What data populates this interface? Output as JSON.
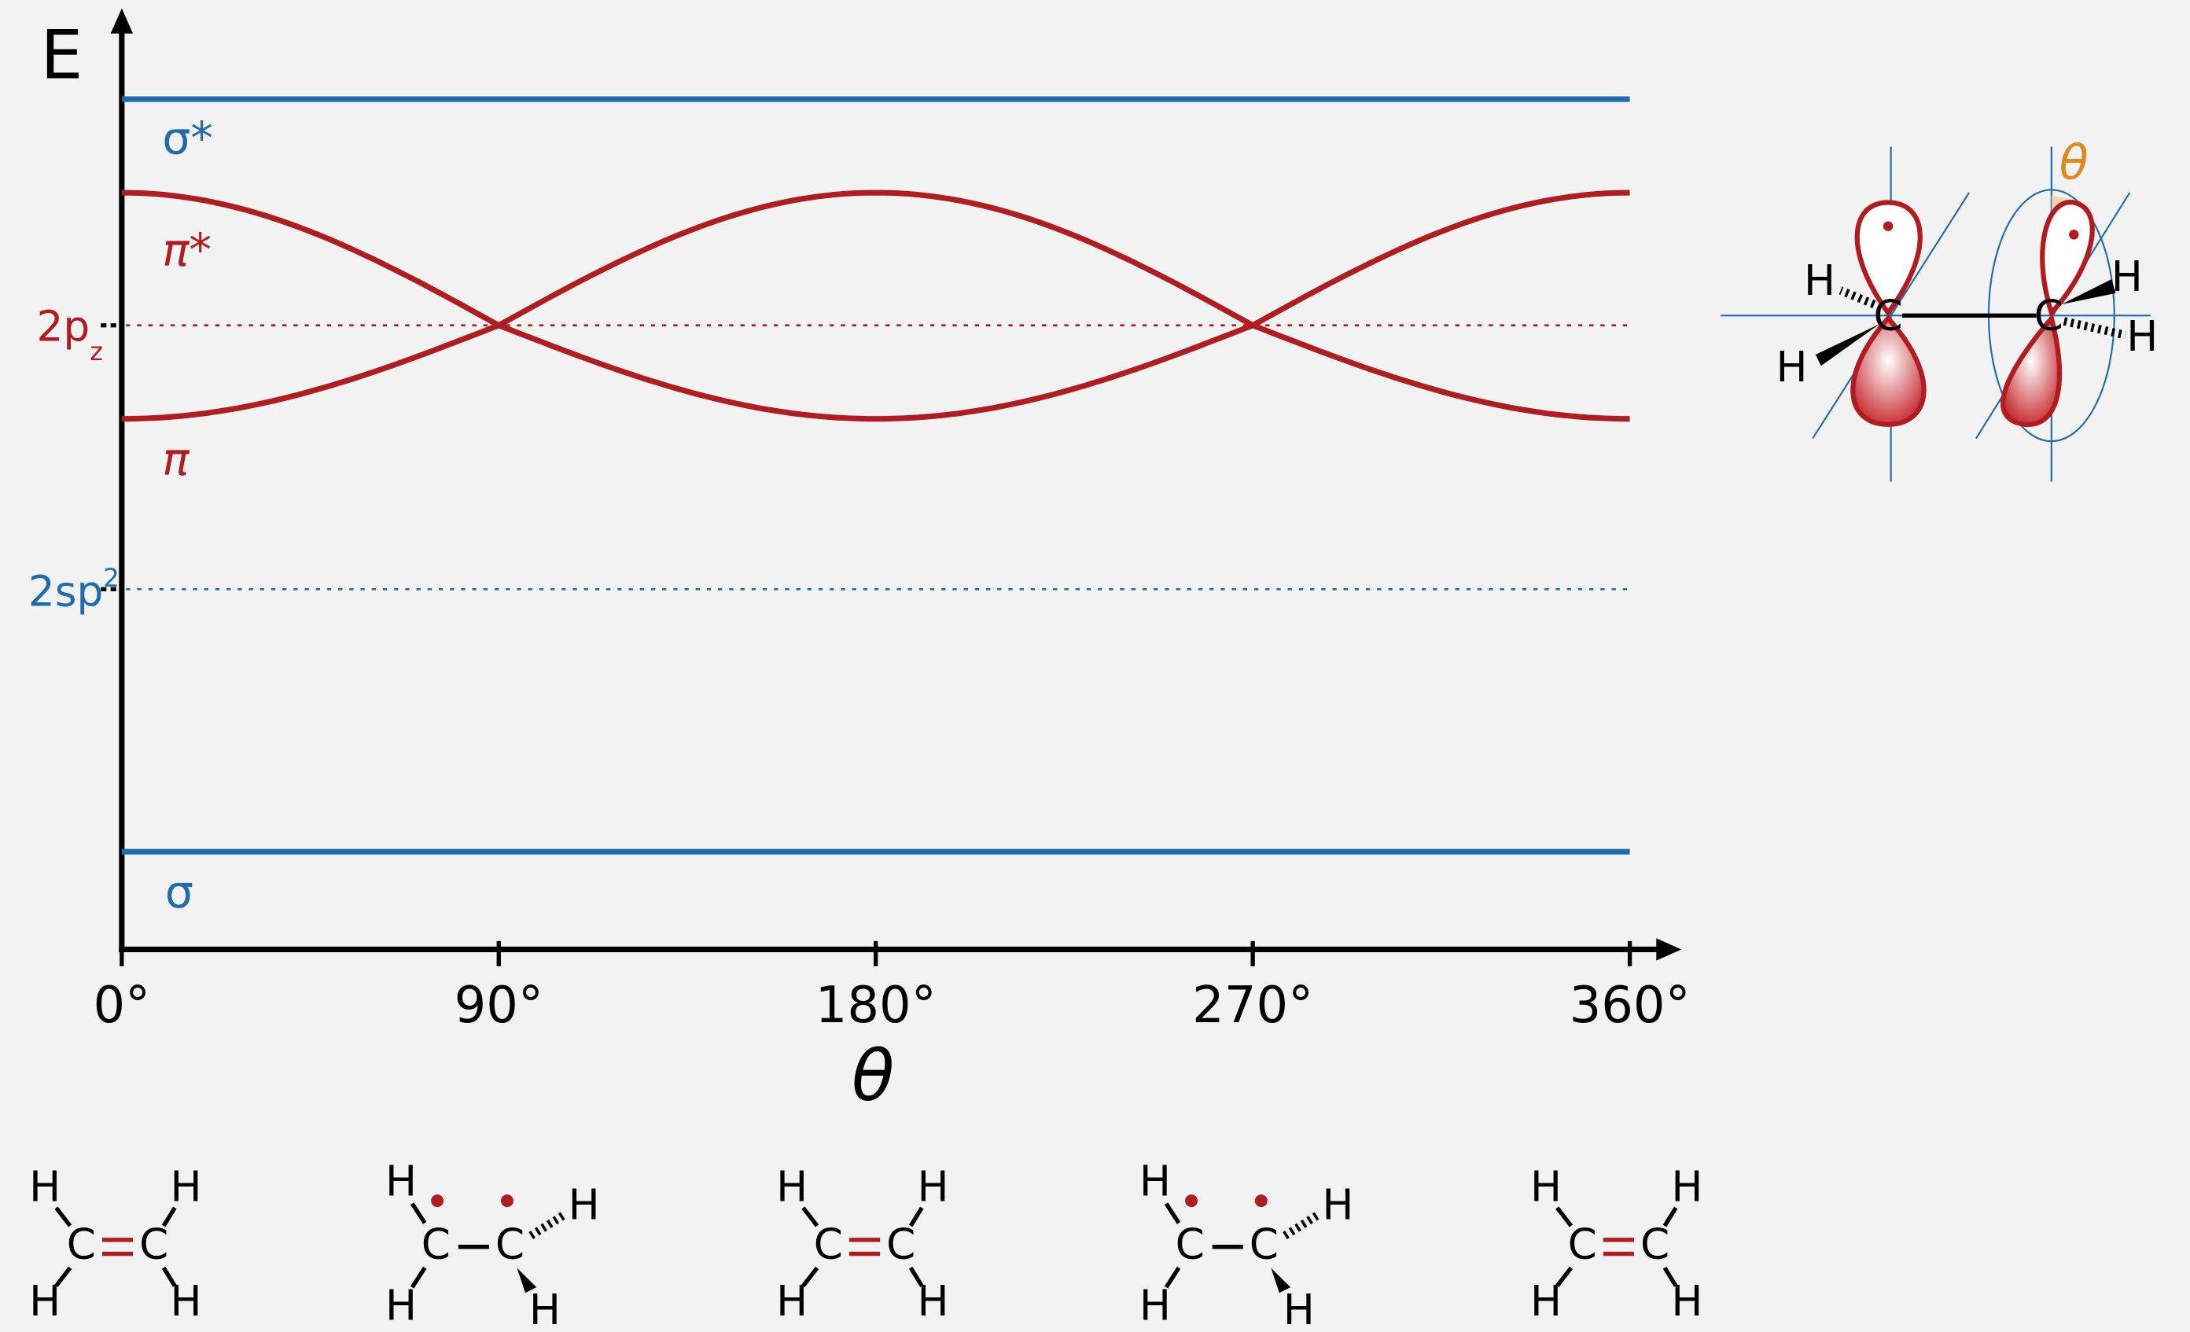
{
  "axes": {
    "y_label": "E",
    "x_label": "θ",
    "x_ticks": [
      "0°",
      "90°",
      "180°",
      "270°",
      "360°"
    ]
  },
  "levels": {
    "sigma_star": "σ*",
    "pi_star": "π*",
    "p_orbital": {
      "base": "2p",
      "sub": "z"
    },
    "pi": "π",
    "sp2": {
      "base": "2sp",
      "sup": "2"
    },
    "sigma": "σ"
  },
  "inset": {
    "angle": "θ",
    "atoms": [
      "H",
      "H",
      "C",
      "C",
      "H",
      "H"
    ]
  },
  "molecules": [
    {
      "atoms": [
        "H",
        "H",
        "C",
        "C",
        "H",
        "H"
      ]
    },
    {
      "atoms": [
        "H",
        "H",
        "C",
        "C",
        "H",
        "H"
      ]
    },
    {
      "atoms": [
        "H",
        "H",
        "C",
        "C",
        "H",
        "H"
      ]
    },
    {
      "atoms": [
        "H",
        "H",
        "C",
        "C",
        "H",
        "H"
      ]
    },
    {
      "atoms": [
        "H",
        "H",
        "C",
        "C",
        "H",
        "H"
      ]
    }
  ]
}
